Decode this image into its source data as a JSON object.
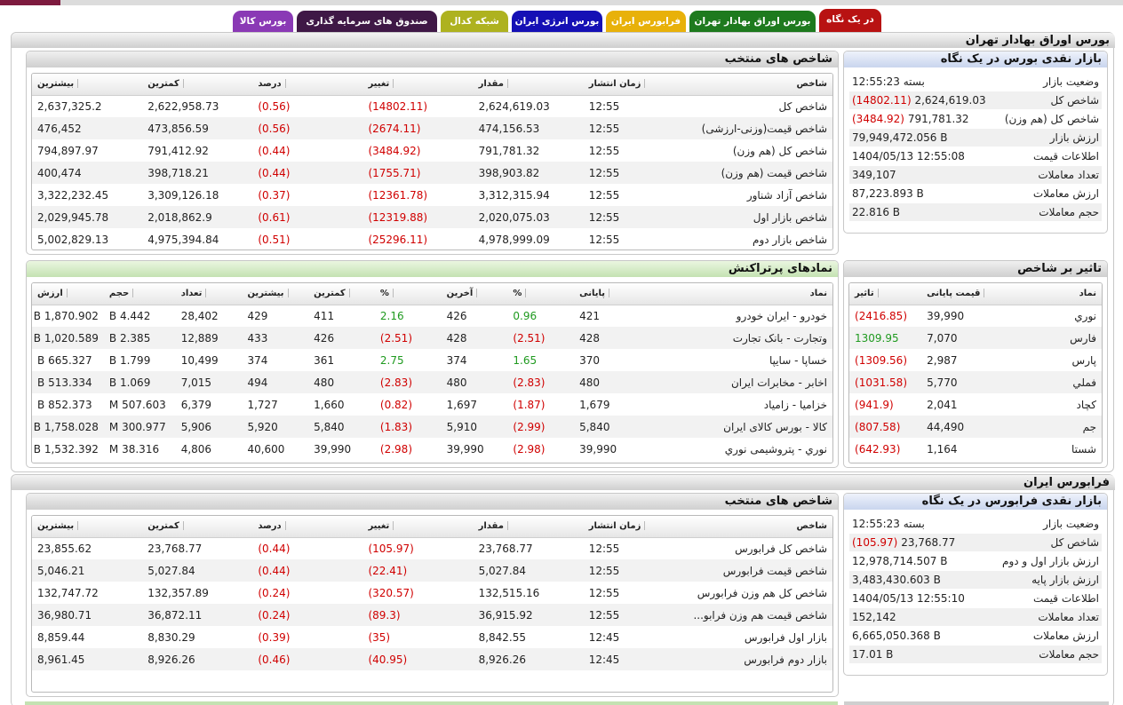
{
  "tabs": [
    {
      "label": "در یک نگاه",
      "color": "#b81212",
      "active": true
    },
    {
      "label": "بورس اوراق بهادار تهران",
      "color": "#1e7a1e"
    },
    {
      "label": "فرابورس ایران",
      "color": "#e8b10a"
    },
    {
      "label": "بورس انرژی ایران",
      "color": "#1510b5"
    },
    {
      "label": "شبکه کدال",
      "color": "#aeb21f"
    },
    {
      "label": "صندوق های سرمایه گذاری",
      "color": "#3f1846"
    },
    {
      "label": "بورس کالا",
      "color": "#8a39b5"
    }
  ],
  "tse": {
    "title": "بورس اوراق بهادار تهران",
    "summary": {
      "title": "بازار نقدی بورس در یک نگاه",
      "rows": [
        {
          "label": "وضعیت بازار",
          "value": "بسته 12:55:23"
        },
        {
          "label": "شاخص کل",
          "value": "2,624,619.03",
          "change": "(14802.11)"
        },
        {
          "label": "شاخص کل (هم وزن)",
          "value": "791,781.32",
          "change": "(3484.92)"
        },
        {
          "label": "ارزش بازار",
          "value": "79,949,472.056 B"
        },
        {
          "label": "اطلاعات قیمت",
          "value": "1404/05/13 12:55:08"
        },
        {
          "label": "تعداد معاملات",
          "value": "349,107"
        },
        {
          "label": "ارزش معاملات",
          "value": "87,223.893 B"
        },
        {
          "label": "حجم معاملات",
          "value": "22.816 B"
        }
      ]
    },
    "indices": {
      "title": "شاخص های منتخب",
      "headers": [
        "شاخص",
        "زمان انتشار",
        "مقدار",
        "تغییر",
        "درصد",
        "کمترین",
        "بیشترین"
      ],
      "rows": [
        [
          "شاخص کل",
          "12:55",
          "2,624,619.03",
          "(14802.11)",
          "(0.56)",
          "2,622,958.73",
          "2,637,325.2"
        ],
        [
          "شاخص قیمت(وزنی-ارزشی)",
          "12:55",
          "474,156.53",
          "(2674.11)",
          "(0.56)",
          "473,856.59",
          "476,452"
        ],
        [
          "شاخص کل (هم وزن)",
          "12:55",
          "791,781.32",
          "(3484.92)",
          "(0.44)",
          "791,412.92",
          "794,897.97"
        ],
        [
          "شاخص قیمت (هم وزن)",
          "12:55",
          "398,903.82",
          "(1755.71)",
          "(0.44)",
          "398,718.21",
          "400,474"
        ],
        [
          "شاخص آزاد شناور",
          "12:55",
          "3,312,315.94",
          "(12361.78)",
          "(0.37)",
          "3,309,126.18",
          "3,322,232.45"
        ],
        [
          "شاخص بازار اول",
          "12:55",
          "2,020,075.03",
          "(12319.88)",
          "(0.61)",
          "2,018,862.9",
          "2,029,945.78"
        ],
        [
          "شاخص بازار دوم",
          "12:55",
          "4,978,999.09",
          "(25296.11)",
          "(0.51)",
          "4,975,394.84",
          "5,002,829.13"
        ]
      ]
    },
    "impact": {
      "title": "تاثیر بر شاخص",
      "headers": [
        "نماد",
        "قیمت پایانی",
        "تاثیر"
      ],
      "rows": [
        [
          "نوري",
          "39,990",
          "(2416.85)"
        ],
        [
          "فارس",
          "7,070",
          "1309.95"
        ],
        [
          "پارس",
          "2,987",
          "(1309.56)"
        ],
        [
          "فملي",
          "5,770",
          "(1031.58)"
        ],
        [
          "کچاد",
          "2,041",
          "(941.9)"
        ],
        [
          "جم",
          "44,490",
          "(807.58)"
        ],
        [
          "شستا",
          "1,164",
          "(642.93)"
        ]
      ]
    },
    "active": {
      "title": "نمادهای پرتراکنش",
      "headers": [
        "نماد",
        "پایانی",
        "%",
        "آخرین",
        "%",
        "کمترین",
        "بیشترین",
        "تعداد",
        "حجم",
        "ارزش"
      ],
      "rows": [
        [
          "خودرو - ایران خودرو",
          "421",
          "0.96",
          "426",
          "2.16",
          "411",
          "429",
          "28,402",
          "4.442 B",
          "1,870.902 B"
        ],
        [
          "وتجارت - بانک تجارت",
          "428",
          "(2.51)",
          "428",
          "(2.51)",
          "426",
          "433",
          "12,889",
          "2.385 B",
          "1,020.589 B"
        ],
        [
          "خساپا - سایپا",
          "370",
          "1.65",
          "374",
          "2.75",
          "361",
          "374",
          "10,499",
          "1.799 B",
          "665.327 B"
        ],
        [
          "اخابر - مخابرات ایران",
          "480",
          "(2.83)",
          "480",
          "(2.83)",
          "480",
          "494",
          "7,015",
          "1.069 B",
          "513.334 B"
        ],
        [
          "خزامیا - زامیاد",
          "1,679",
          "(1.87)",
          "1,697",
          "(0.82)",
          "1,660",
          "1,727",
          "6,379",
          "507.603 M",
          "852.373 B"
        ],
        [
          "کالا - بورس کالای ایران",
          "5,840",
          "(2.99)",
          "5,910",
          "(1.83)",
          "5,840",
          "5,920",
          "5,906",
          "300.977 M",
          "1,758.028 B"
        ],
        [
          "نوري - پتروشیمی نوري",
          "39,990",
          "(2.98)",
          "39,990",
          "(2.98)",
          "39,990",
          "40,600",
          "4,806",
          "38.316 M",
          "1,532.392 B"
        ]
      ]
    }
  },
  "ifb": {
    "title": "فرابورس ایران",
    "summary": {
      "title": "بازار نقدی فرابورس در یک نگاه",
      "rows": [
        {
          "label": "وضعیت بازار",
          "value": "بسته 12:55:23"
        },
        {
          "label": "شاخص کل",
          "value": "23,768.77",
          "change": "(105.97)"
        },
        {
          "label": "ارزش بازار اول و دوم",
          "value": "12,978,714.507 B"
        },
        {
          "label": "ارزش بازار پایه",
          "value": "3,483,430.603 B"
        },
        {
          "label": "اطلاعات قیمت",
          "value": "1404/05/13 12:55:10"
        },
        {
          "label": "تعداد معاملات",
          "value": "152,142"
        },
        {
          "label": "ارزش معاملات",
          "value": "6,665,050.368 B"
        },
        {
          "label": "حجم معاملات",
          "value": "17.01 B"
        }
      ]
    },
    "indices": {
      "title": "شاخص های منتخب",
      "headers": [
        "شاخص",
        "زمان انتشار",
        "مقدار",
        "تغییر",
        "درصد",
        "کمترین",
        "بیشترین"
      ],
      "rows": [
        [
          "شاخص کل فرابورس",
          "12:55",
          "23,768.77",
          "(105.97)",
          "(0.44)",
          "23,768.77",
          "23,855.62"
        ],
        [
          "شاخص قیمت فرابورس",
          "12:55",
          "5,027.84",
          "(22.41)",
          "(0.44)",
          "5,027.84",
          "5,046.21"
        ],
        [
          "شاخص کل هم وزن فرابورس",
          "12:55",
          "132,515.16",
          "(320.57)",
          "(0.24)",
          "132,357.89",
          "132,747.72"
        ],
        [
          "شاخص قیمت هم وزن فرابو...",
          "12:55",
          "36,915.92",
          "(89.3)",
          "(0.24)",
          "36,872.11",
          "36,980.71"
        ],
        [
          "بازار اول فرابورس",
          "12:45",
          "8,842.55",
          "(35)",
          "(0.39)",
          "8,830.29",
          "8,859.44"
        ],
        [
          "بازار دوم فرابورس",
          "12:45",
          "8,926.26",
          "(40.95)",
          "(0.46)",
          "8,926.26",
          "8,961.45"
        ]
      ]
    }
  }
}
